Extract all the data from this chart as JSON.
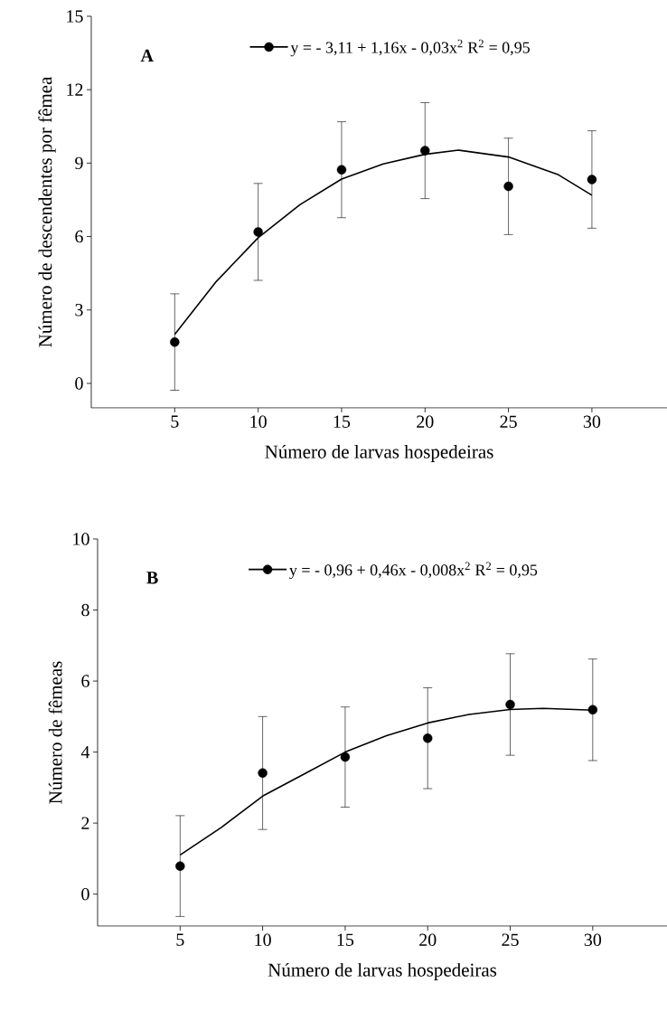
{
  "chart_data": [
    {
      "type": "scatter",
      "xlabel": "Número de larvas hospedeiras",
      "ylabel": "Número de descendentes por fêmea",
      "annotations": [
        "A"
      ],
      "legend": "top",
      "xlim": [
        0,
        34.5
      ],
      "ylim": [
        -1,
        15
      ],
      "xticks": [
        5,
        10,
        15,
        20,
        25,
        30
      ],
      "yticks": [
        0,
        3,
        6,
        9,
        12,
        15
      ],
      "series": [
        {
          "name": "y = - 3,11 + 1,16x - 0,03x$^{2}$  R$^{2}$ = 0,95",
          "marker": "circle",
          "color": "#000000",
          "x": [
            5,
            10,
            15,
            20,
            25,
            30
          ],
          "values": [
            1.69,
            6.19,
            8.73,
            9.51,
            8.05,
            8.33
          ],
          "errors": [
            1.97,
            1.98,
            1.96,
            1.96,
            1.97,
            1.99
          ]
        },
        {
          "type": "line",
          "marker": "none",
          "color": "#000000",
          "x": [
            5,
            7.5,
            10,
            12.5,
            15,
            17.5,
            20,
            22,
            25,
            28,
            30
          ],
          "values": [
            2.0,
            4.17,
            5.95,
            7.3,
            8.35,
            8.97,
            9.36,
            9.53,
            9.25,
            8.52,
            7.69
          ]
        }
      ]
    },
    {
      "type": "scatter",
      "xlabel": "Número de larvas hospedeiras",
      "ylabel": "Número de fêmeas",
      "annotations": [
        "B"
      ],
      "legend": "top",
      "xlim": [
        0,
        34.5
      ],
      "ylim": [
        -0.9,
        10
      ],
      "xticks": [
        5,
        10,
        15,
        20,
        25,
        30
      ],
      "yticks": [
        0,
        2,
        4,
        6,
        8,
        10
      ],
      "series": [
        {
          "name": "y = - 0,96 + 0,46x - 0,008x$^{2}$  R$^{2}$ = 0,95",
          "marker": "circle",
          "color": "#000000",
          "x": [
            5,
            10,
            15,
            20,
            25,
            30
          ],
          "values": [
            0.79,
            3.41,
            3.86,
            4.39,
            5.34,
            5.19
          ],
          "errors": [
            1.42,
            1.59,
            1.41,
            1.42,
            1.43,
            1.43
          ]
        },
        {
          "type": "line",
          "marker": "none",
          "color": "#000000",
          "x": [
            5,
            7.5,
            10,
            12.5,
            15,
            17.5,
            20,
            22.5,
            25,
            27,
            30
          ],
          "values": [
            1.1,
            1.88,
            2.76,
            3.38,
            4.0,
            4.46,
            4.82,
            5.06,
            5.2,
            5.23,
            5.18
          ]
        }
      ]
    }
  ]
}
